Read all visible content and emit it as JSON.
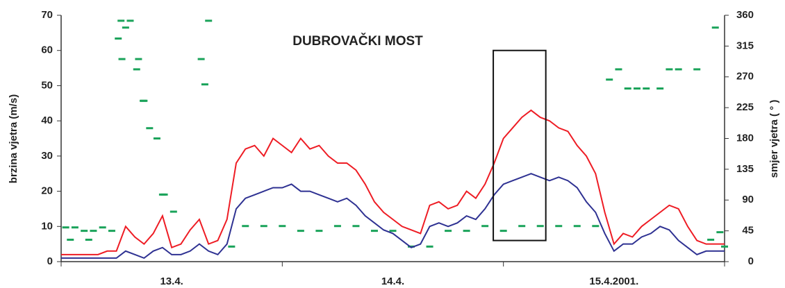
{
  "chart_data": {
    "type": "line",
    "title": "DUBROVAČKI MOST",
    "ylabel": "brzina vjetra (m/s)",
    "y2label": "smjer vjetra ( ° )",
    "xlim": [
      0,
      72
    ],
    "xticks": [
      0,
      24,
      48,
      72
    ],
    "x_labels": [
      {
        "value": 12,
        "label": "13.4."
      },
      {
        "value": 36,
        "label": "14.4."
      },
      {
        "value": 60,
        "label": "15.4.2001."
      }
    ],
    "ylim": [
      0,
      70
    ],
    "yticks": [
      0,
      10,
      20,
      30,
      40,
      50,
      60,
      70
    ],
    "y2lim": [
      0,
      360
    ],
    "y2ticks": [
      0,
      45,
      90,
      135,
      180,
      225,
      270,
      315,
      360
    ],
    "x": [
      0,
      1,
      2,
      3,
      4,
      5,
      6,
      7,
      8,
      9,
      10,
      11,
      12,
      13,
      14,
      15,
      16,
      17,
      18,
      19,
      20,
      21,
      22,
      23,
      24,
      25,
      26,
      27,
      28,
      29,
      30,
      31,
      32,
      33,
      34,
      35,
      36,
      37,
      38,
      39,
      40,
      41,
      42,
      43,
      44,
      45,
      46,
      47,
      48,
      49,
      50,
      51,
      52,
      53,
      54,
      55,
      56,
      57,
      58,
      59,
      60,
      61,
      62,
      63,
      64,
      65,
      66,
      67,
      68,
      69,
      70,
      71,
      72
    ],
    "series": [
      {
        "color": "#ee1c24",
        "values": [
          2,
          2,
          2,
          2,
          2,
          3,
          3,
          10,
          7,
          5,
          8,
          13,
          4,
          5,
          9,
          12,
          5,
          6,
          12,
          28,
          32,
          33,
          30,
          35,
          33,
          31,
          35,
          32,
          33,
          30,
          28,
          28,
          26,
          22,
          17,
          14,
          12,
          10,
          9,
          8,
          16,
          17,
          15,
          16,
          20,
          18,
          22,
          28,
          35,
          38,
          41,
          43,
          41,
          40,
          38,
          37,
          33,
          30,
          25,
          14,
          5,
          8,
          7,
          10,
          12,
          14,
          16,
          15,
          10,
          6,
          5,
          5,
          5
        ]
      },
      {
        "color": "#2e3192",
        "values": [
          1,
          1,
          1,
          1,
          1,
          1,
          1,
          3,
          2,
          1,
          3,
          4,
          2,
          2,
          3,
          5,
          3,
          2,
          5,
          15,
          18,
          19,
          20,
          21,
          21,
          22,
          20,
          20,
          19,
          18,
          17,
          18,
          16,
          13,
          11,
          9,
          8,
          6,
          4,
          5,
          10,
          11,
          10,
          11,
          13,
          12,
          15,
          19,
          22,
          23,
          24,
          25,
          24,
          23,
          24,
          23,
          21,
          17,
          14,
          8,
          3,
          5,
          5,
          7,
          8,
          10,
          9,
          6,
          4,
          2,
          3,
          3,
          3
        ]
      },
      {
        "color": "#1aa35a",
        "axis": "y2",
        "mark": "scatter",
        "x": [
          0.5,
          1.5,
          2.5,
          3.5,
          4.5,
          5.5,
          1,
          3,
          6.5,
          7,
          7.5,
          6.2,
          6.6,
          8.4,
          8.2,
          9,
          8.9,
          9.6,
          10.4,
          11,
          11.2,
          12.2,
          15.2,
          16,
          15.6,
          18.5,
          20,
          22,
          24,
          26,
          28,
          30,
          32,
          34,
          36,
          38,
          40,
          42,
          44,
          46,
          48,
          50,
          52,
          54,
          56,
          58,
          59.5,
          60.5,
          61.5,
          62.5,
          63.5,
          65,
          66,
          67,
          69,
          71,
          71.5,
          70.5,
          72
        ],
        "values": [
          50,
          50,
          45,
          45,
          50,
          45,
          32,
          32,
          352,
          342,
          352,
          326,
          296,
          296,
          281,
          235,
          235,
          195,
          180,
          98,
          98,
          73,
          296,
          352,
          259,
          22,
          52,
          52,
          52,
          45,
          45,
          52,
          52,
          45,
          45,
          22,
          22,
          45,
          45,
          52,
          45,
          52,
          52,
          52,
          52,
          52,
          266,
          281,
          253,
          253,
          253,
          253,
          281,
          281,
          281,
          342,
          43,
          32,
          22
        ]
      }
    ],
    "highlight": {
      "x": [
        46.9,
        52.6
      ],
      "y": [
        6,
        60
      ]
    }
  }
}
